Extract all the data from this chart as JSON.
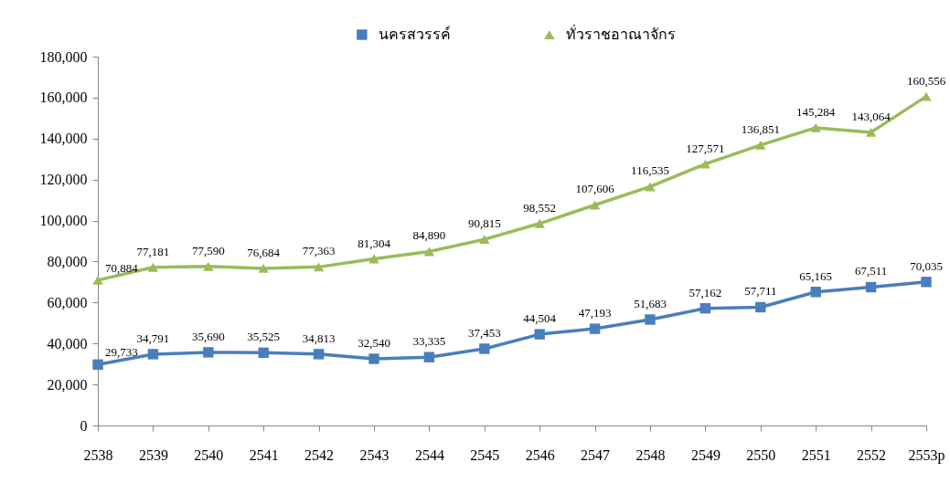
{
  "chart_data": {
    "type": "line",
    "categories": [
      "2538",
      "2539",
      "2540",
      "2541",
      "2542",
      "2543",
      "2544",
      "2545",
      "2546",
      "2547",
      "2548",
      "2549",
      "2550",
      "2551",
      "2552",
      "2553p"
    ],
    "series": [
      {
        "name": "นครสวรรค์",
        "color": "#4a7ebb",
        "marker": "square",
        "values": [
          29733,
          34791,
          35690,
          35525,
          34813,
          32540,
          33335,
          37453,
          44504,
          47193,
          51683,
          57162,
          57711,
          65165,
          67511,
          70035
        ],
        "value_labels": [
          "29,733",
          "34,791",
          "35,690",
          "35,525",
          "34,813",
          "32,540",
          "33,335",
          "37,453",
          "44,504",
          "47,193",
          "51,683",
          "57,162",
          "57,711",
          "65,165",
          "67,511",
          "70,035"
        ]
      },
      {
        "name": "ทั่วราชอาณาจักร",
        "color": "#9bbb59",
        "marker": "triangle",
        "values": [
          70884,
          77181,
          77590,
          76684,
          77363,
          81304,
          84890,
          90815,
          98552,
          107606,
          116535,
          127571,
          136851,
          145284,
          143064,
          160556
        ],
        "value_labels": [
          "70,884",
          "77,181",
          "77,590",
          "76,684",
          "77,363",
          "81,304",
          "84,890",
          "90,815",
          "98,552",
          "107,606",
          "116,535",
          "127,571",
          "136,851",
          "145,284",
          "143,064",
          "160,556"
        ]
      }
    ],
    "ylim": [
      0,
      180000
    ],
    "yticks": [
      0,
      {
        "value": 20000,
        "label": "20,000"
      },
      {
        "value": 40000,
        "label": "40,000"
      },
      {
        "value": 60000,
        "label": "60,000"
      },
      {
        "value": 80000,
        "label": "80,000"
      },
      {
        "value": 100000,
        "label": "100,000"
      },
      {
        "value": 120000,
        "label": "120,000"
      },
      {
        "value": 140000,
        "label": "140,000"
      },
      {
        "value": 160000,
        "label": "160,000"
      },
      {
        "value": 180000,
        "label": "180,000"
      }
    ],
    "grid": false,
    "legend": "top",
    "line_style": "solid"
  }
}
